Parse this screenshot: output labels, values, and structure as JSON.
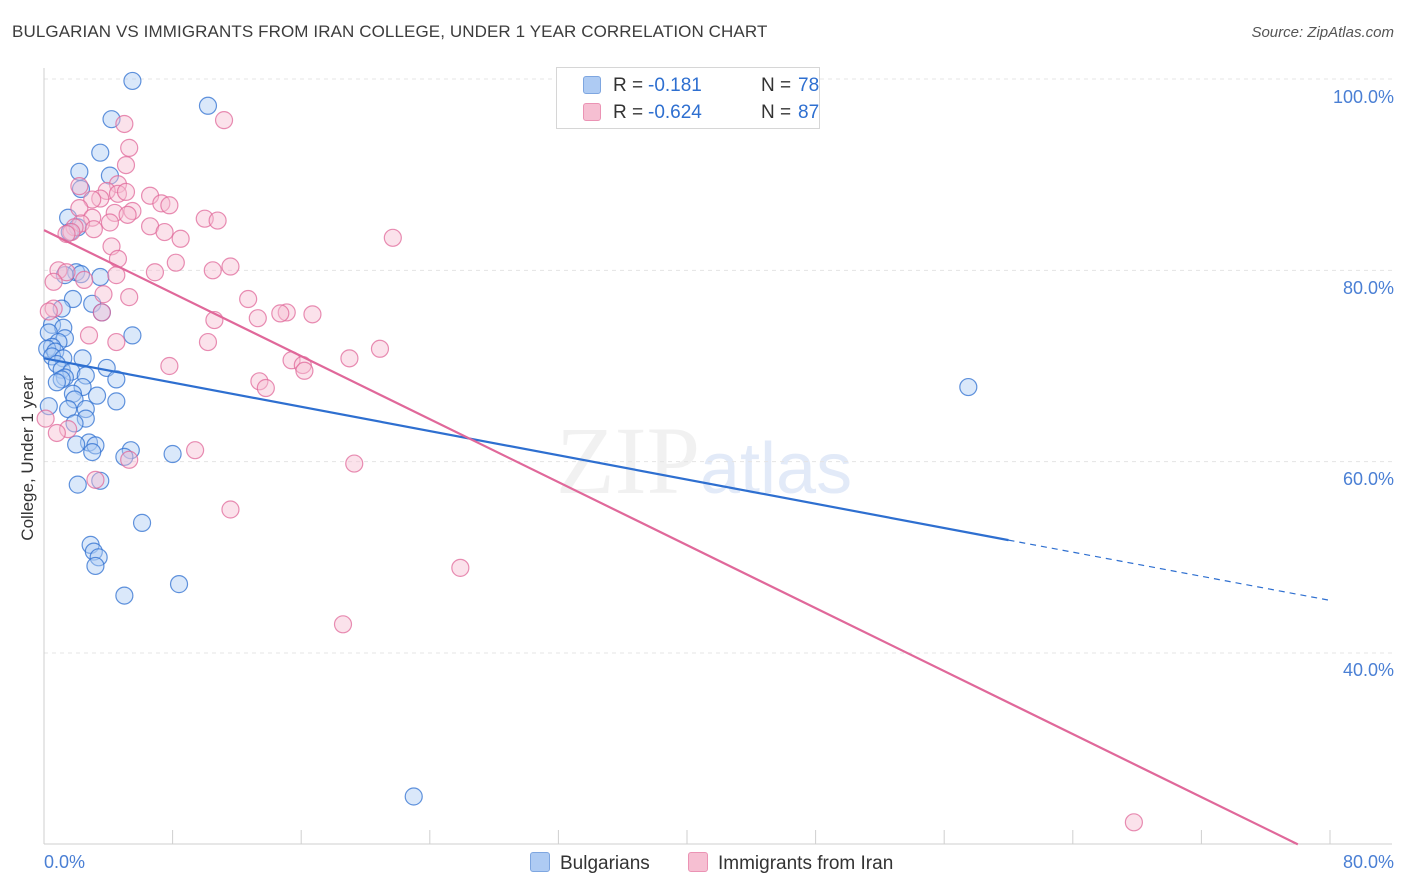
{
  "title": "BULGARIAN VS IMMIGRANTS FROM IRAN COLLEGE, UNDER 1 YEAR CORRELATION CHART",
  "source": "Source: ZipAtlas.com",
  "watermark": {
    "zip": "ZIP",
    "atlas": "atlas"
  },
  "colors": {
    "blue": "#2e6fd0",
    "blue_fill": "#aecbf3",
    "pink": "#e0689a",
    "pink_fill": "#f6bfd2",
    "grid": "#e4e4e4",
    "axis_text": "#4a7fd4"
  },
  "legend_top": {
    "rows": [
      {
        "r_label": "R =",
        "r_value": "-0.181",
        "n_label": "N =",
        "n_value": "78"
      },
      {
        "r_label": "R =",
        "r_value": "-0.624",
        "n_label": "N =",
        "n_value": "87"
      }
    ]
  },
  "legend_bottom": {
    "series1": "Bulgarians",
    "series2": "Immigrants from Iran"
  },
  "chart_data": {
    "type": "scatter",
    "title": "BULGARIAN VS IMMIGRANTS FROM IRAN COLLEGE, UNDER 1 YEAR CORRELATION CHART",
    "xlabel": "",
    "ylabel": "College, Under 1 year",
    "xlim": [
      0,
      80
    ],
    "ylim": [
      20,
      103
    ],
    "x_tick_labels": [
      "0.0%",
      "80.0%"
    ],
    "y_tick_labels": [
      "40.0%",
      "60.0%",
      "80.0%",
      "100.0%"
    ],
    "y_ticks": [
      40,
      60,
      80,
      100
    ],
    "grid": true,
    "series": [
      {
        "name": "Bulgarians",
        "color": "#2e6fd0",
        "r": -0.181,
        "n": 78,
        "trend": {
          "x0": 0,
          "y0": 70.8,
          "x1": 60,
          "y1": 51.8,
          "dashed_to_x": 80,
          "dashed_to_y": 45.5
        },
        "points": [
          [
            5.5,
            99.8
          ],
          [
            10.2,
            97.2
          ],
          [
            4.2,
            95.8
          ],
          [
            3.5,
            92.3
          ],
          [
            2.2,
            90.3
          ],
          [
            4.1,
            89.9
          ],
          [
            2.3,
            88.5
          ],
          [
            1.5,
            85.5
          ],
          [
            2.1,
            84.5
          ],
          [
            1.6,
            84.0
          ],
          [
            2.0,
            79.8
          ],
          [
            2.3,
            79.6
          ],
          [
            1.3,
            79.5
          ],
          [
            3.5,
            79.3
          ],
          [
            1.8,
            77.0
          ],
          [
            3.0,
            76.5
          ],
          [
            1.1,
            76.0
          ],
          [
            3.6,
            75.6
          ],
          [
            0.5,
            74.3
          ],
          [
            1.2,
            74.0
          ],
          [
            0.3,
            73.5
          ],
          [
            5.5,
            73.2
          ],
          [
            1.3,
            72.9
          ],
          [
            0.9,
            72.5
          ],
          [
            0.5,
            72.0
          ],
          [
            0.2,
            71.8
          ],
          [
            0.7,
            71.5
          ],
          [
            0.5,
            71.0
          ],
          [
            1.2,
            70.8
          ],
          [
            2.4,
            70.8
          ],
          [
            0.8,
            70.2
          ],
          [
            3.9,
            69.8
          ],
          [
            1.1,
            69.6
          ],
          [
            1.7,
            69.4
          ],
          [
            2.6,
            69.0
          ],
          [
            1.3,
            68.8
          ],
          [
            1.1,
            68.6
          ],
          [
            0.8,
            68.3
          ],
          [
            4.5,
            68.6
          ],
          [
            2.4,
            67.8
          ],
          [
            1.8,
            67.1
          ],
          [
            3.3,
            66.9
          ],
          [
            1.9,
            66.5
          ],
          [
            4.5,
            66.3
          ],
          [
            0.3,
            65.8
          ],
          [
            1.5,
            65.5
          ],
          [
            2.6,
            65.5
          ],
          [
            2.6,
            64.5
          ],
          [
            1.9,
            64.0
          ],
          [
            2.8,
            62.0
          ],
          [
            2.0,
            61.8
          ],
          [
            3.2,
            61.7
          ],
          [
            5.4,
            61.2
          ],
          [
            3.0,
            61.0
          ],
          [
            8.0,
            60.8
          ],
          [
            5.0,
            60.5
          ],
          [
            3.5,
            58.0
          ],
          [
            2.1,
            57.6
          ],
          [
            6.1,
            53.6
          ],
          [
            2.9,
            51.3
          ],
          [
            3.1,
            50.6
          ],
          [
            3.4,
            50.0
          ],
          [
            3.2,
            49.1
          ],
          [
            8.4,
            47.2
          ],
          [
            5.0,
            46.0
          ],
          [
            57.5,
            67.8
          ],
          [
            23.0,
            25.0
          ]
        ]
      },
      {
        "name": "Immigrants from Iran",
        "color": "#e0689a",
        "r": -0.624,
        "n": 87,
        "trend": {
          "x0": 0,
          "y0": 84.2,
          "x1": 78,
          "y1": 20.0
        },
        "points": [
          [
            11.2,
            95.7
          ],
          [
            5.0,
            95.3
          ],
          [
            5.3,
            92.8
          ],
          [
            5.1,
            91.0
          ],
          [
            2.2,
            88.8
          ],
          [
            4.6,
            89.0
          ],
          [
            3.9,
            88.3
          ],
          [
            4.6,
            88.0
          ],
          [
            5.1,
            88.2
          ],
          [
            6.6,
            87.8
          ],
          [
            3.5,
            87.5
          ],
          [
            3.0,
            87.4
          ],
          [
            7.3,
            87.0
          ],
          [
            2.2,
            86.5
          ],
          [
            7.8,
            86.8
          ],
          [
            5.5,
            86.2
          ],
          [
            4.4,
            86.0
          ],
          [
            5.2,
            85.8
          ],
          [
            3.0,
            85.5
          ],
          [
            10.0,
            85.4
          ],
          [
            10.8,
            85.2
          ],
          [
            4.1,
            85.0
          ],
          [
            2.3,
            84.9
          ],
          [
            1.9,
            84.5
          ],
          [
            3.1,
            84.3
          ],
          [
            6.6,
            84.6
          ],
          [
            1.7,
            84.0
          ],
          [
            7.5,
            84.0
          ],
          [
            8.5,
            83.3
          ],
          [
            21.7,
            83.4
          ],
          [
            1.4,
            83.8
          ],
          [
            4.2,
            82.5
          ],
          [
            4.6,
            81.2
          ],
          [
            8.2,
            80.8
          ],
          [
            11.6,
            80.4
          ],
          [
            0.9,
            80.0
          ],
          [
            10.5,
            80.0
          ],
          [
            1.4,
            79.8
          ],
          [
            6.9,
            79.8
          ],
          [
            4.5,
            79.5
          ],
          [
            2.5,
            79.0
          ],
          [
            0.6,
            78.8
          ],
          [
            3.7,
            77.5
          ],
          [
            5.3,
            77.2
          ],
          [
            12.7,
            77.0
          ],
          [
            0.6,
            76.0
          ],
          [
            0.3,
            75.7
          ],
          [
            15.1,
            75.6
          ],
          [
            16.7,
            75.4
          ],
          [
            14.7,
            75.5
          ],
          [
            13.3,
            75.0
          ],
          [
            3.6,
            75.6
          ],
          [
            10.6,
            74.8
          ],
          [
            2.8,
            73.2
          ],
          [
            4.5,
            72.5
          ],
          [
            10.2,
            72.5
          ],
          [
            20.9,
            71.8
          ],
          [
            19.0,
            70.8
          ],
          [
            15.4,
            70.6
          ],
          [
            16.1,
            70.1
          ],
          [
            7.8,
            70.0
          ],
          [
            16.2,
            69.5
          ],
          [
            13.4,
            68.4
          ],
          [
            13.8,
            67.7
          ],
          [
            0.1,
            64.5
          ],
          [
            1.5,
            63.4
          ],
          [
            0.8,
            63.0
          ],
          [
            9.4,
            61.2
          ],
          [
            5.3,
            60.2
          ],
          [
            19.3,
            59.8
          ],
          [
            3.2,
            58.1
          ],
          [
            11.6,
            55.0
          ],
          [
            25.9,
            48.9
          ],
          [
            18.6,
            43.0
          ],
          [
            67.8,
            22.3
          ]
        ]
      }
    ]
  }
}
